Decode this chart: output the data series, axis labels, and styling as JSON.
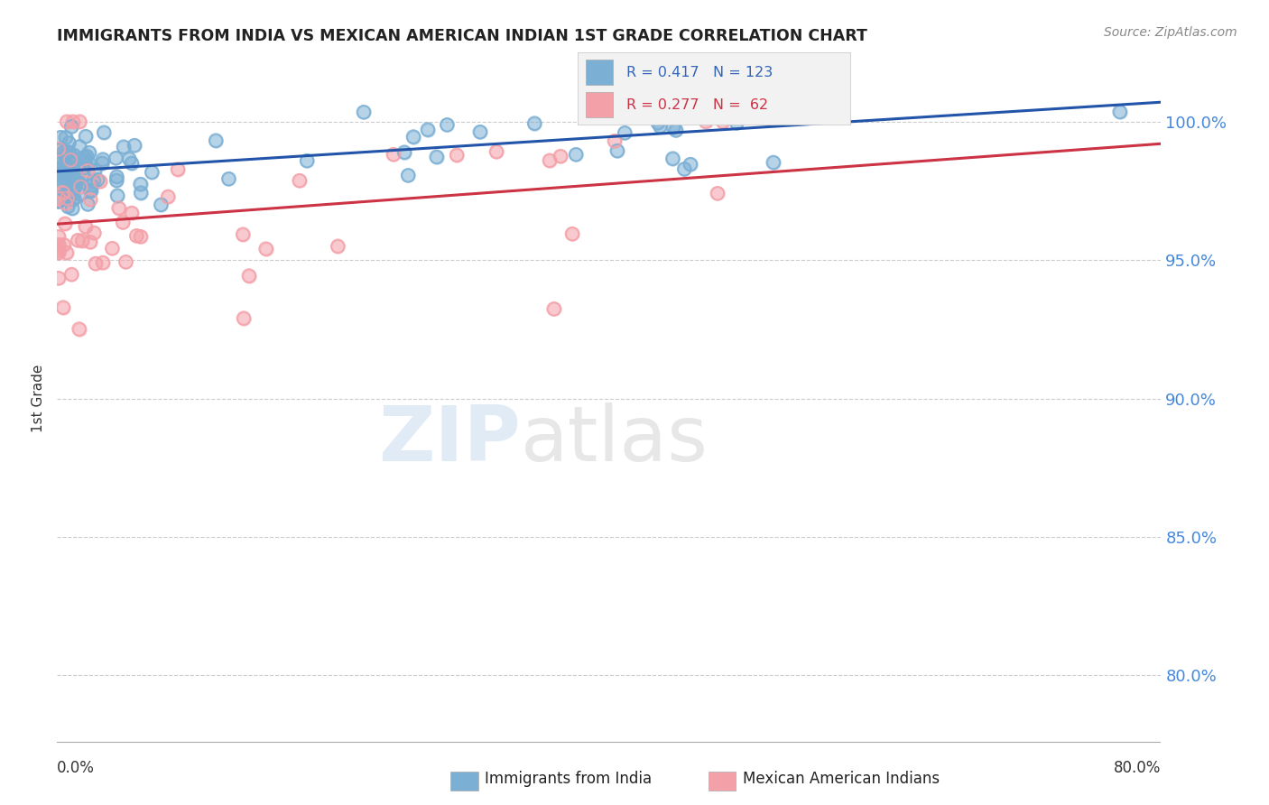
{
  "title": "IMMIGRANTS FROM INDIA VS MEXICAN AMERICAN INDIAN 1ST GRADE CORRELATION CHART",
  "source": "Source: ZipAtlas.com",
  "ylabel": "1st Grade",
  "ytick_labels": [
    "100.0%",
    "95.0%",
    "90.0%",
    "85.0%",
    "80.0%"
  ],
  "ytick_values": [
    1.0,
    0.95,
    0.9,
    0.85,
    0.8
  ],
  "xlim": [
    0.0,
    0.8
  ],
  "ylim": [
    0.775,
    1.025
  ],
  "R_india": 0.417,
  "N_india": 123,
  "R_mexican": 0.277,
  "N_mexican": 62,
  "india_color": "#7BAFD4",
  "mexican_color": "#F4A0A8",
  "india_line_color": "#2255AA",
  "mexican_line_color": "#CC3344",
  "india_line_x0": 0.0,
  "india_line_y0": 0.982,
  "india_line_x1": 0.8,
  "india_line_y1": 1.007,
  "mexican_line_x0": 0.0,
  "mexican_line_y0": 0.963,
  "mexican_line_x1": 0.8,
  "mexican_line_y1": 0.992
}
